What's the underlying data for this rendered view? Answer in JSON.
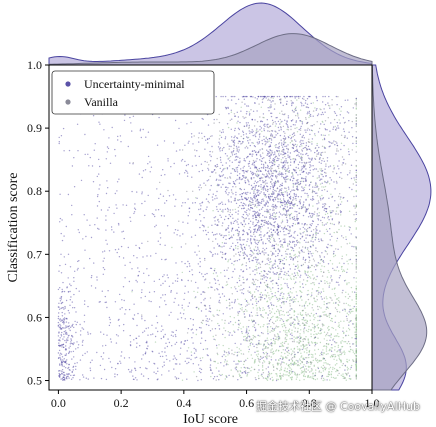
{
  "chart_data": {
    "type": "scatter",
    "xlabel": "IoU score",
    "ylabel": "Classification score",
    "xlim": [
      -0.03,
      1.0
    ],
    "ylim": [
      0.485,
      1.0
    ],
    "x_ticks": [
      0.0,
      0.2,
      0.4,
      0.6,
      0.8,
      1.0
    ],
    "y_ticks": [
      0.5,
      0.6,
      0.7,
      0.8,
      0.9,
      1.0
    ],
    "x_tick_labels": [
      "0.0",
      "0.2",
      "0.4",
      "0.6",
      "0.8",
      "1.0"
    ],
    "y_tick_labels": [
      "0.5",
      "0.6",
      "0.7",
      "0.8",
      "0.9",
      "1.0"
    ],
    "legend_position": "top-left",
    "marginal_distributions": true,
    "series": [
      {
        "name": "Uncertainty-minimal",
        "color": "#5b52a8",
        "fill": "#b9b2dc",
        "cluster": {
          "x_center": 0.7,
          "y_center": 0.78,
          "x_min": 0.0,
          "x_max": 0.95,
          "y_min": 0.5,
          "y_max": 0.95
        },
        "marginal_x_peak": 0.65,
        "marginal_y_peak": 0.8
      },
      {
        "name": "Vanilla",
        "color": "#8a8a98",
        "fill": "#a7a3c2",
        "cluster": {
          "x_center": 0.78,
          "y_center": 0.62,
          "x_min": 0.0,
          "x_max": 0.95,
          "y_min": 0.5,
          "y_max": 0.95
        },
        "marginal_x_peak": 0.75,
        "marginal_y_peak": 0.57
      }
    ]
  },
  "watermark": "掘金技术社区 @ CoovallyAIHub"
}
